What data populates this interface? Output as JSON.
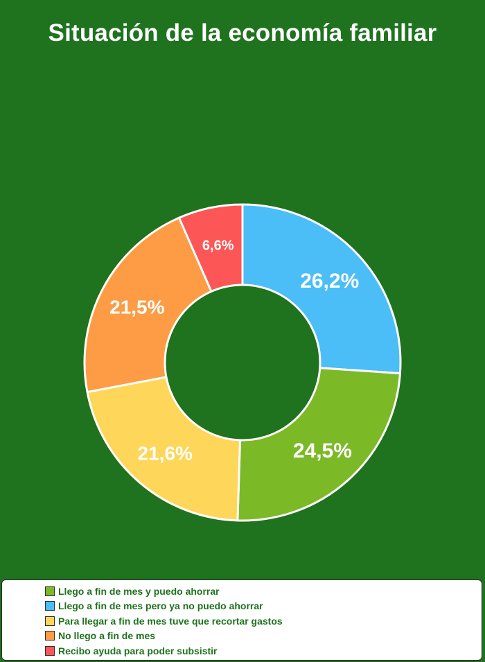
{
  "chart_data": {
    "type": "pie",
    "title": "Situación de la economía familiar",
    "categories": [
      "Llego a fin de mes pero ya no puedo ahorrar",
      "Llego a fin de mes y puedo ahorrar",
      "Para llegar a fin de mes tuve que recortar gastos",
      "No llego a fin de mes",
      "Recibo ayuda para poder subsistir"
    ],
    "values": [
      26.2,
      24.5,
      21.6,
      21.5,
      6.6
    ],
    "value_labels": [
      "26,2%",
      "24,5%",
      "21,6%",
      "21,5%",
      "6,6%"
    ],
    "colors": [
      "#4bbdf7",
      "#7cb927",
      "#fdd65a",
      "#fd9c45",
      "#fc5656"
    ],
    "donut": true,
    "legend_position": "bottom",
    "legend": [
      {
        "label": "Llego a fin de mes y puedo ahorrar",
        "color": "#7cb927"
      },
      {
        "label": "Llego a fin de mes pero ya no puedo ahorrar",
        "color": "#4bbdf7"
      },
      {
        "label": "Para llegar a fin de mes tuve que recortar gastos",
        "color": "#fdd65a"
      },
      {
        "label": "No llego a fin de mes",
        "color": "#fd9c45"
      },
      {
        "label": "Recibo ayuda para poder subsistir",
        "color": "#fc5656"
      }
    ]
  }
}
